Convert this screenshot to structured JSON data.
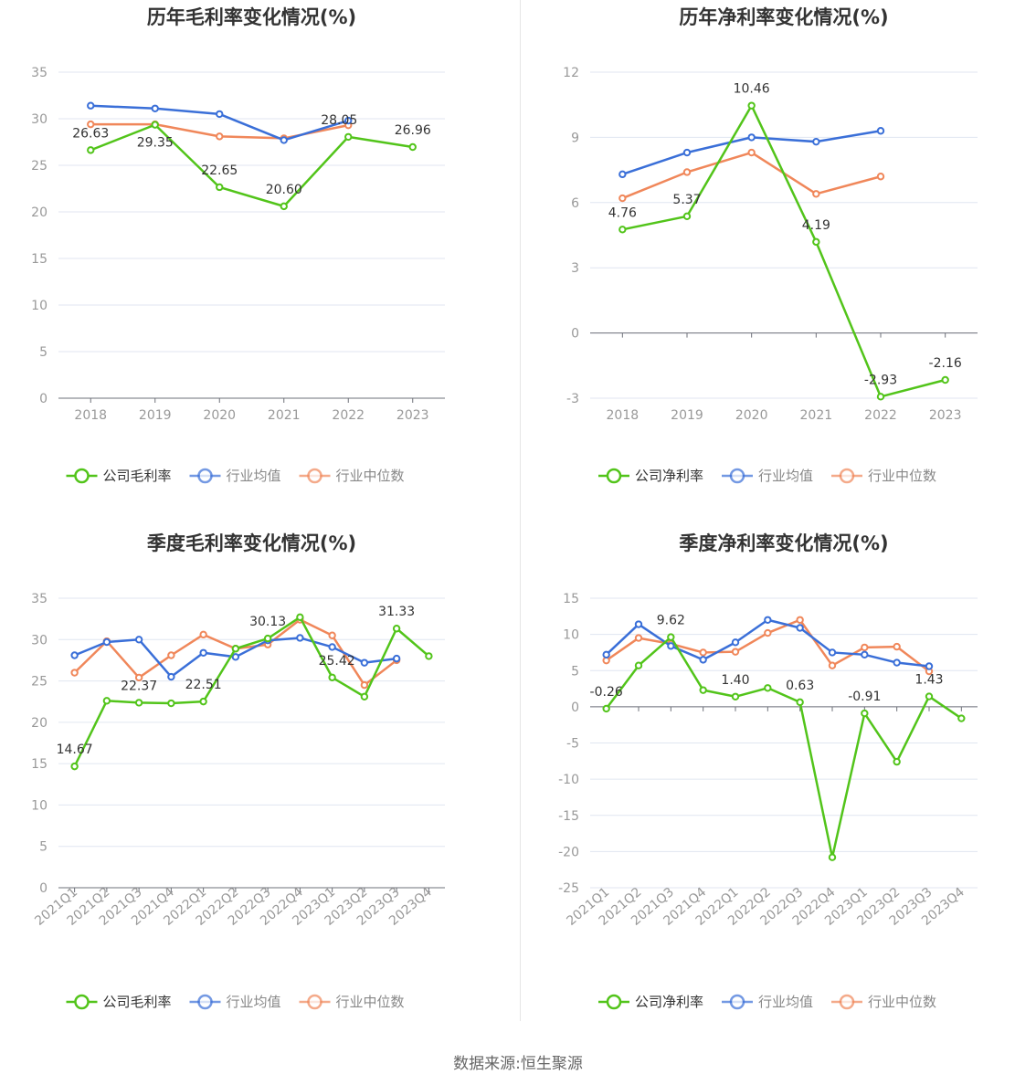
{
  "footer": {
    "source_label": "数据来源:",
    "source_name": "恒生聚源"
  },
  "legend_items": [
    "公司毛利率",
    "行业均值",
    "行业中位数"
  ],
  "colors": {
    "company": "#52c41a",
    "industry_avg": "#3a6fd8",
    "industry_median": "#f0875a",
    "axis": "#6e7079",
    "grid": "#e0e6f1"
  },
  "chart_data": [
    {
      "id": "annual-gross",
      "type": "line",
      "title": "历年毛利率变化情况(%)",
      "x": [
        "2018",
        "2019",
        "2020",
        "2021",
        "2022",
        "2023"
      ],
      "ylim": [
        0,
        35
      ],
      "yticks": [
        0,
        5,
        10,
        15,
        20,
        25,
        30,
        35
      ],
      "xlabel": "",
      "ylabel": "",
      "grid": true,
      "legend_position": "bottom",
      "series": [
        {
          "name": "公司毛利率",
          "key": "company",
          "values": [
            26.63,
            29.35,
            22.65,
            20.6,
            28.05,
            26.96
          ],
          "labels": [
            "26.63",
            "29.35",
            "22.65",
            "20.60",
            "28.05",
            "26.96"
          ]
        },
        {
          "name": "行业均值",
          "key": "industry_avg",
          "values": [
            31.4,
            31.1,
            30.5,
            27.7,
            29.8,
            null
          ]
        },
        {
          "name": "行业中位数",
          "key": "industry_median",
          "values": [
            29.4,
            29.4,
            28.1,
            27.9,
            29.3,
            null
          ]
        }
      ]
    },
    {
      "id": "annual-net",
      "type": "line",
      "title": "历年净利率变化情况(%)",
      "x": [
        "2018",
        "2019",
        "2020",
        "2021",
        "2022",
        "2023"
      ],
      "ylim": [
        -3,
        12
      ],
      "yticks": [
        -3,
        0,
        3,
        6,
        9,
        12
      ],
      "xlabel": "",
      "ylabel": "",
      "grid": true,
      "legend_position": "bottom",
      "series": [
        {
          "name": "公司净利率",
          "key": "company",
          "values": [
            4.76,
            5.37,
            10.46,
            4.19,
            -2.93,
            -2.16
          ],
          "labels": [
            "4.76",
            "5.37",
            "10.46",
            "4.19",
            "-2.93",
            "-2.16"
          ]
        },
        {
          "name": "行业均值",
          "key": "industry_avg",
          "values": [
            7.3,
            8.3,
            9.0,
            8.8,
            9.3,
            null
          ]
        },
        {
          "name": "行业中位数",
          "key": "industry_median",
          "values": [
            6.2,
            7.4,
            8.3,
            6.4,
            7.2,
            null
          ]
        }
      ]
    },
    {
      "id": "quarterly-gross",
      "type": "line",
      "title": "季度毛利率变化情况(%)",
      "x": [
        "2021Q1",
        "2021Q2",
        "2021Q3",
        "2021Q4",
        "2022Q1",
        "2022Q2",
        "2022Q3",
        "2022Q4",
        "2023Q1",
        "2023Q2",
        "2023Q3",
        "2023Q4"
      ],
      "ylim": [
        0,
        35
      ],
      "yticks": [
        0,
        5,
        10,
        15,
        20,
        25,
        30,
        35
      ],
      "xlabel": "",
      "ylabel": "",
      "grid": true,
      "legend_position": "bottom",
      "series": [
        {
          "name": "公司毛利率",
          "key": "company",
          "values": [
            14.67,
            22.6,
            22.37,
            22.3,
            22.51,
            28.9,
            30.13,
            32.7,
            25.42,
            23.1,
            31.33,
            28.0
          ],
          "labels": [
            "14.67",
            "",
            "22.37",
            "",
            "22.51",
            "",
            "30.13",
            "",
            "25.42",
            "",
            "31.33",
            ""
          ]
        },
        {
          "name": "行业均值",
          "key": "industry_avg",
          "values": [
            28.1,
            29.7,
            30.0,
            25.5,
            28.4,
            27.9,
            29.9,
            30.2,
            29.1,
            27.2,
            27.7,
            null
          ]
        },
        {
          "name": "行业中位数",
          "key": "industry_median",
          "values": [
            26.0,
            29.8,
            25.4,
            28.1,
            30.6,
            28.9,
            29.4,
            32.4,
            30.5,
            24.5,
            27.5,
            null
          ]
        }
      ]
    },
    {
      "id": "quarterly-net",
      "type": "line",
      "title": "季度净利率变化情况(%)",
      "x": [
        "2021Q1",
        "2021Q2",
        "2021Q3",
        "2021Q4",
        "2022Q1",
        "2022Q2",
        "2022Q3",
        "2022Q4",
        "2023Q1",
        "2023Q2",
        "2023Q3",
        "2023Q4"
      ],
      "ylim": [
        -25,
        15
      ],
      "yticks": [
        -25,
        -20,
        -15,
        -10,
        -5,
        0,
        5,
        10,
        15
      ],
      "xlabel": "",
      "ylabel": "",
      "grid": true,
      "legend_position": "bottom",
      "series": [
        {
          "name": "公司净利率",
          "key": "company",
          "values": [
            -0.26,
            5.7,
            9.62,
            2.3,
            1.4,
            2.6,
            0.63,
            -20.8,
            -0.91,
            -7.6,
            1.43,
            -1.6
          ],
          "labels": [
            "-0.26",
            "",
            "9.62",
            "",
            "1.40",
            "",
            "0.63",
            "",
            "-0.91",
            "",
            "1.43",
            ""
          ]
        },
        {
          "name": "行业均值",
          "key": "industry_avg",
          "values": [
            7.2,
            11.4,
            8.4,
            6.5,
            8.9,
            12.0,
            10.9,
            7.5,
            7.2,
            6.1,
            5.6,
            null
          ]
        },
        {
          "name": "行业中位数",
          "key": "industry_median",
          "values": [
            6.4,
            9.5,
            8.7,
            7.5,
            7.6,
            10.2,
            12.0,
            5.7,
            8.2,
            8.3,
            4.9,
            null
          ]
        }
      ]
    }
  ]
}
